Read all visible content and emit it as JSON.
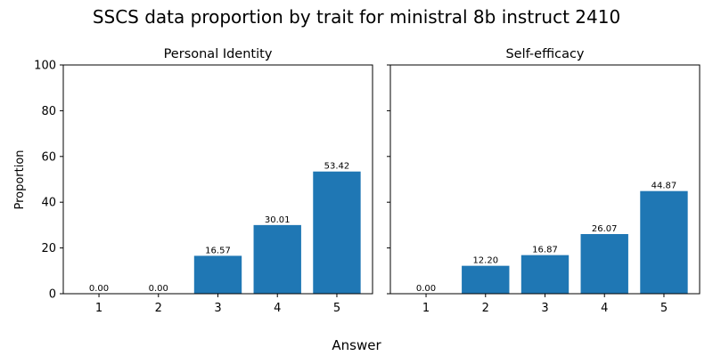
{
  "figure": {
    "title": "SSCS data proportion by trait for ministral 8b instruct 2410",
    "xlabel": "Answer",
    "ylabel": "Proportion"
  },
  "colors": {
    "bar": "#1f77b4",
    "axis": "#000000",
    "background": "#ffffff"
  },
  "chart_data": [
    {
      "type": "bar",
      "title": "Personal Identity",
      "categories": [
        "1",
        "2",
        "3",
        "4",
        "5"
      ],
      "values": [
        0.0,
        0.0,
        16.57,
        30.01,
        53.42
      ],
      "value_labels": [
        "0.00",
        "0.00",
        "16.57",
        "30.01",
        "53.42"
      ],
      "ylim": [
        0,
        100
      ],
      "yticks": [
        "0",
        "20",
        "40",
        "60",
        "80",
        "100"
      ],
      "xlabel": "Answer",
      "ylabel": "Proportion",
      "grid": false
    },
    {
      "type": "bar",
      "title": "Self-efficacy",
      "categories": [
        "1",
        "2",
        "3",
        "4",
        "5"
      ],
      "values": [
        0.0,
        12.2,
        16.87,
        26.07,
        44.87
      ],
      "value_labels": [
        "0.00",
        "12.20",
        "16.87",
        "26.07",
        "44.87"
      ],
      "ylim": [
        0,
        100
      ],
      "yticks": [
        "0",
        "20",
        "40",
        "60",
        "80",
        "100"
      ],
      "xlabel": "Answer",
      "ylabel": "Proportion",
      "grid": false
    }
  ]
}
